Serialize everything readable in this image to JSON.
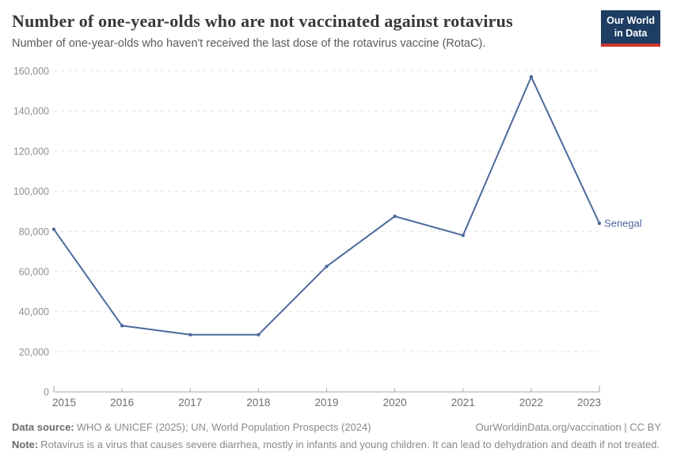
{
  "header": {
    "title": "Number of one-year-olds who are not vaccinated against rotavirus",
    "subtitle": "Number of one-year-olds who haven't received the last dose of the rotavirus vaccine (RotaC)."
  },
  "logo": {
    "line1": "Our World",
    "line2": "in Data",
    "bg_color": "#1d3d63",
    "accent_color": "#d0342c"
  },
  "chart_data": {
    "type": "line",
    "title": "Number of one-year-olds who are not vaccinated against rotavirus",
    "x": [
      2015,
      2016,
      2017,
      2018,
      2019,
      2020,
      2021,
      2022,
      2023
    ],
    "series": [
      {
        "name": "Senegal",
        "values": [
          81000,
          33000,
          28500,
          28500,
          62500,
          87500,
          78000,
          157000,
          84000
        ]
      }
    ],
    "ylim": [
      0,
      160000
    ],
    "ytick_interval": 20000,
    "ytick_labels": [
      "0",
      "20,000",
      "40,000",
      "60,000",
      "80,000",
      "100,000",
      "120,000",
      "140,000",
      "160,000"
    ],
    "grid": "horizontal-dashed",
    "legend_position": "end-of-line-label",
    "line_color": "#4c6a9c"
  },
  "footer": {
    "data_source_label": "Data source:",
    "data_source": "WHO & UNICEF (2025); UN, World Population Prospects (2024)",
    "link": "OurWorldinData.org/vaccination | CC BY",
    "note_label": "Note:",
    "note": "Rotavirus is a virus that causes severe diarrhea, mostly in infants and young children. It can lead to dehydration and death if not treated."
  }
}
